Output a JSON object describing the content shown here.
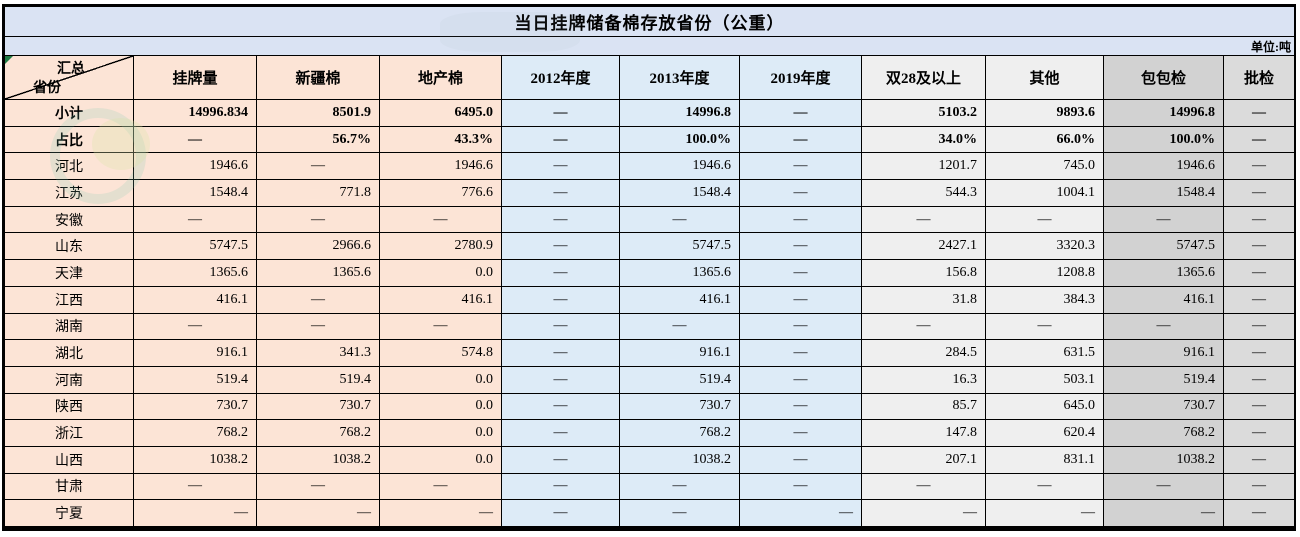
{
  "page": {
    "title": "当日挂牌储备棉存放省份（公重）",
    "unit_label": "单位:吨"
  },
  "colors": {
    "title_bar": "#dae3f3",
    "peach": "#fce4d6",
    "blue": "#ddebf7",
    "lightgray": "#efefef",
    "gray_dark": "#d2d2d2",
    "gray_light": "#dbdbdb",
    "border": "#000000",
    "corner_triangle": "#1f7a43",
    "watermark_teal": "#79c7b4",
    "watermark_yellow": "#d9e6a8"
  },
  "table": {
    "corner": {
      "top_label": "汇总",
      "bottom_label": "省份"
    },
    "columns": [
      {
        "label": "挂牌量",
        "group": "peach"
      },
      {
        "label": "新疆棉",
        "group": "peach"
      },
      {
        "label": "地产棉",
        "group": "peach"
      },
      {
        "label": "2012年度",
        "group": "blue"
      },
      {
        "label": "2013年度",
        "group": "blue"
      },
      {
        "label": "2019年度",
        "group": "blue"
      },
      {
        "label": "双28及以上",
        "group": "lightgray"
      },
      {
        "label": "其他",
        "group": "lightgray"
      },
      {
        "label": "包包检",
        "group": "gray_dark"
      },
      {
        "label": "批检",
        "group": "gray_light"
      }
    ],
    "rows": [
      {
        "label": "小计",
        "bold": true,
        "values": [
          "14996.834",
          "8501.9",
          "6495.0",
          "—",
          "14996.8",
          "—",
          "5103.2",
          "9893.6",
          "14996.8",
          "—"
        ]
      },
      {
        "label": "占比",
        "bold": true,
        "values": [
          "—",
          "56.7%",
          "43.3%",
          "—",
          "100.0%",
          "—",
          "34.0%",
          "66.0%",
          "100.0%",
          "—"
        ]
      },
      {
        "label": "河北",
        "values": [
          "1946.6",
          "—",
          "1946.6",
          "—",
          "1946.6",
          "—",
          "1201.7",
          "745.0",
          "1946.6",
          "—"
        ]
      },
      {
        "label": "江苏",
        "values": [
          "1548.4",
          "771.8",
          "776.6",
          "—",
          "1548.4",
          "—",
          "544.3",
          "1004.1",
          "1548.4",
          "—"
        ]
      },
      {
        "label": "安徽",
        "values": [
          "—",
          "—",
          "—",
          "—",
          "—",
          "—",
          "—",
          "—",
          "—",
          "—"
        ]
      },
      {
        "label": "山东",
        "values": [
          "5747.5",
          "2966.6",
          "2780.9",
          "—",
          "5747.5",
          "—",
          "2427.1",
          "3320.3",
          "5747.5",
          "—"
        ]
      },
      {
        "label": "天津",
        "values": [
          "1365.6",
          "1365.6",
          "0.0",
          "—",
          "1365.6",
          "—",
          "156.8",
          "1208.8",
          "1365.6",
          "—"
        ]
      },
      {
        "label": "江西",
        "values": [
          "416.1",
          "—",
          "416.1",
          "—",
          "416.1",
          "—",
          "31.8",
          "384.3",
          "416.1",
          "—"
        ]
      },
      {
        "label": "湖南",
        "values": [
          "—",
          "—",
          "—",
          "—",
          "—",
          "—",
          "—",
          "—",
          "—",
          "—"
        ]
      },
      {
        "label": "湖北",
        "values": [
          "916.1",
          "341.3",
          "574.8",
          "—",
          "916.1",
          "—",
          "284.5",
          "631.5",
          "916.1",
          "—"
        ]
      },
      {
        "label": "河南",
        "values": [
          "519.4",
          "519.4",
          "0.0",
          "—",
          "519.4",
          "—",
          "16.3",
          "503.1",
          "519.4",
          "—"
        ]
      },
      {
        "label": "陕西",
        "values": [
          "730.7",
          "730.7",
          "0.0",
          "—",
          "730.7",
          "—",
          "85.7",
          "645.0",
          "730.7",
          "—"
        ]
      },
      {
        "label": "浙江",
        "values": [
          "768.2",
          "768.2",
          "0.0",
          "—",
          "768.2",
          "—",
          "147.8",
          "620.4",
          "768.2",
          "—"
        ]
      },
      {
        "label": "山西",
        "values": [
          "1038.2",
          "1038.2",
          "0.0",
          "—",
          "1038.2",
          "—",
          "207.1",
          "831.1",
          "1038.2",
          "—"
        ]
      },
      {
        "label": "甘肃",
        "values": [
          "—",
          "—",
          "—",
          "—",
          "—",
          "—",
          "—",
          "—",
          "—",
          "—"
        ]
      },
      {
        "label": "宁夏",
        "values": [
          "—",
          "—",
          "—",
          "—",
          "—",
          "—",
          "—",
          "—",
          "—",
          "—"
        ],
        "align": [
          "right",
          "right",
          "right",
          "center",
          "center",
          "right",
          "right",
          "right",
          "right",
          "center"
        ]
      }
    ]
  }
}
